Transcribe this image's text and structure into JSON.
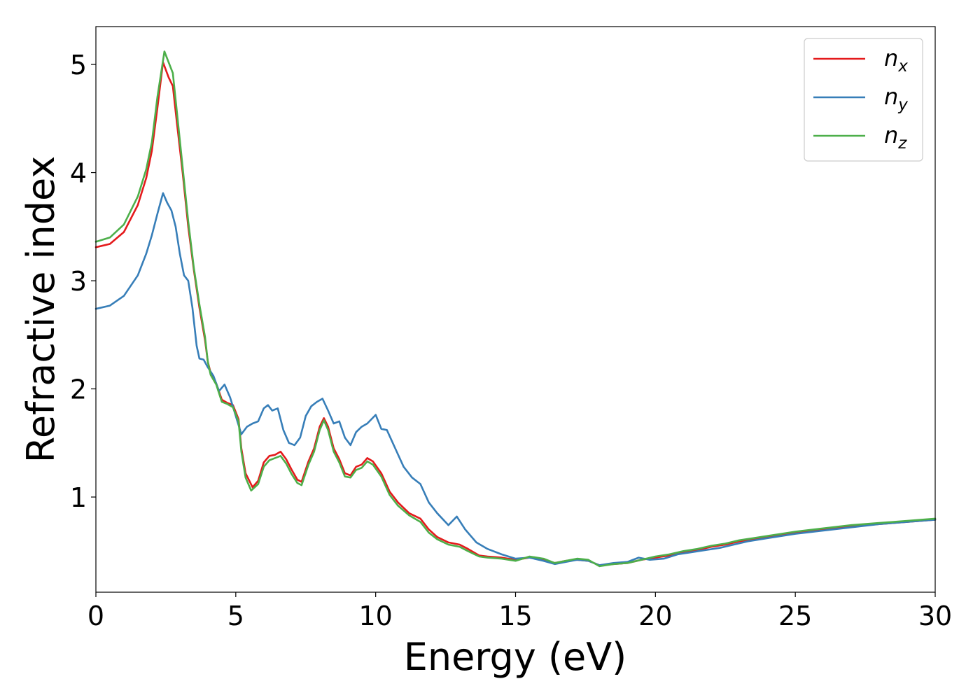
{
  "chart_data": {
    "type": "line",
    "xlabel": "Energy (eV)",
    "ylabel": "Refractive index",
    "xlim": [
      0,
      30
    ],
    "ylim": [
      0.12,
      5.35
    ],
    "x_ticks": [
      0,
      5,
      10,
      15,
      20,
      25,
      30
    ],
    "y_ticks": [
      1,
      2,
      3,
      4,
      5
    ],
    "grid": false,
    "legend_position": "top-right",
    "series": [
      {
        "name": "n",
        "subscript": "x",
        "color": "#e41a1c",
        "points": [
          [
            0,
            3.31
          ],
          [
            0.5,
            3.34
          ],
          [
            1.0,
            3.45
          ],
          [
            1.5,
            3.7
          ],
          [
            1.8,
            3.95
          ],
          [
            2.0,
            4.2
          ],
          [
            2.2,
            4.6
          ],
          [
            2.4,
            5.02
          ],
          [
            2.5,
            4.95
          ],
          [
            2.6,
            4.88
          ],
          [
            2.75,
            4.8
          ],
          [
            2.9,
            4.45
          ],
          [
            3.1,
            4.0
          ],
          [
            3.3,
            3.5
          ],
          [
            3.5,
            3.1
          ],
          [
            3.7,
            2.75
          ],
          [
            3.9,
            2.45
          ],
          [
            4.0,
            2.25
          ],
          [
            4.1,
            2.15
          ],
          [
            4.3,
            2.05
          ],
          [
            4.5,
            1.9
          ],
          [
            4.7,
            1.87
          ],
          [
            4.9,
            1.85
          ],
          [
            5.1,
            1.72
          ],
          [
            5.2,
            1.45
          ],
          [
            5.35,
            1.22
          ],
          [
            5.6,
            1.09
          ],
          [
            5.8,
            1.15
          ],
          [
            6.0,
            1.32
          ],
          [
            6.2,
            1.38
          ],
          [
            6.4,
            1.39
          ],
          [
            6.6,
            1.42
          ],
          [
            6.8,
            1.35
          ],
          [
            7.0,
            1.25
          ],
          [
            7.2,
            1.16
          ],
          [
            7.35,
            1.14
          ],
          [
            7.6,
            1.33
          ],
          [
            7.8,
            1.45
          ],
          [
            8.0,
            1.65
          ],
          [
            8.15,
            1.73
          ],
          [
            8.3,
            1.65
          ],
          [
            8.5,
            1.45
          ],
          [
            8.7,
            1.35
          ],
          [
            8.9,
            1.22
          ],
          [
            9.1,
            1.2
          ],
          [
            9.3,
            1.28
          ],
          [
            9.5,
            1.3
          ],
          [
            9.7,
            1.36
          ],
          [
            9.9,
            1.33
          ],
          [
            10.2,
            1.22
          ],
          [
            10.5,
            1.05
          ],
          [
            10.8,
            0.95
          ],
          [
            11.2,
            0.85
          ],
          [
            11.6,
            0.8
          ],
          [
            11.9,
            0.7
          ],
          [
            12.2,
            0.63
          ],
          [
            12.6,
            0.58
          ],
          [
            13.0,
            0.56
          ],
          [
            13.3,
            0.52
          ],
          [
            13.7,
            0.46
          ],
          [
            14.0,
            0.45
          ],
          [
            14.5,
            0.44
          ],
          [
            15.0,
            0.42
          ],
          [
            15.5,
            0.44
          ],
          [
            16.0,
            0.42
          ],
          [
            16.4,
            0.39
          ],
          [
            16.8,
            0.41
          ],
          [
            17.2,
            0.42
          ],
          [
            17.6,
            0.41
          ],
          [
            18.0,
            0.37
          ],
          [
            18.5,
            0.38
          ],
          [
            19.0,
            0.39
          ],
          [
            19.5,
            0.42
          ],
          [
            20.0,
            0.44
          ],
          [
            20.5,
            0.46
          ],
          [
            21.0,
            0.49
          ],
          [
            21.5,
            0.51
          ],
          [
            22.0,
            0.54
          ],
          [
            22.5,
            0.56
          ],
          [
            23.0,
            0.59
          ],
          [
            23.5,
            0.61
          ],
          [
            24.0,
            0.63
          ],
          [
            25.0,
            0.67
          ],
          [
            26.0,
            0.7
          ],
          [
            27.0,
            0.73
          ],
          [
            28.0,
            0.75
          ],
          [
            29.0,
            0.77
          ],
          [
            30.0,
            0.79
          ]
        ]
      },
      {
        "name": "n",
        "subscript": "y",
        "color": "#377eb8",
        "points": [
          [
            0,
            2.74
          ],
          [
            0.5,
            2.77
          ],
          [
            1.0,
            2.86
          ],
          [
            1.5,
            3.05
          ],
          [
            1.8,
            3.25
          ],
          [
            2.0,
            3.42
          ],
          [
            2.2,
            3.62
          ],
          [
            2.4,
            3.81
          ],
          [
            2.55,
            3.72
          ],
          [
            2.7,
            3.65
          ],
          [
            2.85,
            3.5
          ],
          [
            3.0,
            3.25
          ],
          [
            3.15,
            3.05
          ],
          [
            3.3,
            3.0
          ],
          [
            3.45,
            2.75
          ],
          [
            3.6,
            2.4
          ],
          [
            3.7,
            2.28
          ],
          [
            3.85,
            2.27
          ],
          [
            4.0,
            2.2
          ],
          [
            4.2,
            2.12
          ],
          [
            4.4,
            1.98
          ],
          [
            4.6,
            2.04
          ],
          [
            4.8,
            1.92
          ],
          [
            5.0,
            1.75
          ],
          [
            5.2,
            1.58
          ],
          [
            5.4,
            1.65
          ],
          [
            5.6,
            1.68
          ],
          [
            5.8,
            1.7
          ],
          [
            6.0,
            1.82
          ],
          [
            6.15,
            1.85
          ],
          [
            6.3,
            1.8
          ],
          [
            6.5,
            1.82
          ],
          [
            6.7,
            1.62
          ],
          [
            6.9,
            1.5
          ],
          [
            7.1,
            1.48
          ],
          [
            7.3,
            1.55
          ],
          [
            7.5,
            1.75
          ],
          [
            7.7,
            1.84
          ],
          [
            7.9,
            1.88
          ],
          [
            8.1,
            1.91
          ],
          [
            8.3,
            1.8
          ],
          [
            8.5,
            1.68
          ],
          [
            8.7,
            1.7
          ],
          [
            8.9,
            1.55
          ],
          [
            9.1,
            1.48
          ],
          [
            9.3,
            1.6
          ],
          [
            9.5,
            1.65
          ],
          [
            9.7,
            1.68
          ],
          [
            10.0,
            1.76
          ],
          [
            10.2,
            1.63
          ],
          [
            10.4,
            1.62
          ],
          [
            10.7,
            1.45
          ],
          [
            11.0,
            1.28
          ],
          [
            11.3,
            1.18
          ],
          [
            11.6,
            1.12
          ],
          [
            11.9,
            0.95
          ],
          [
            12.2,
            0.85
          ],
          [
            12.6,
            0.74
          ],
          [
            12.9,
            0.82
          ],
          [
            13.2,
            0.7
          ],
          [
            13.6,
            0.58
          ],
          [
            14.0,
            0.52
          ],
          [
            14.5,
            0.47
          ],
          [
            15.0,
            0.43
          ],
          [
            15.5,
            0.44
          ],
          [
            16.0,
            0.41
          ],
          [
            16.4,
            0.38
          ],
          [
            16.8,
            0.4
          ],
          [
            17.2,
            0.42
          ],
          [
            17.6,
            0.41
          ],
          [
            18.0,
            0.37
          ],
          [
            18.5,
            0.39
          ],
          [
            19.0,
            0.4
          ],
          [
            19.4,
            0.44
          ],
          [
            19.8,
            0.42
          ],
          [
            20.3,
            0.43
          ],
          [
            20.8,
            0.47
          ],
          [
            21.3,
            0.49
          ],
          [
            21.8,
            0.51
          ],
          [
            22.3,
            0.53
          ],
          [
            22.8,
            0.56
          ],
          [
            23.3,
            0.59
          ],
          [
            24.0,
            0.62
          ],
          [
            25.0,
            0.66
          ],
          [
            26.0,
            0.69
          ],
          [
            27.0,
            0.72
          ],
          [
            28.0,
            0.75
          ],
          [
            29.0,
            0.77
          ],
          [
            30.0,
            0.79
          ]
        ]
      },
      {
        "name": "n",
        "subscript": "z",
        "color": "#4daf4a",
        "points": [
          [
            0,
            3.36
          ],
          [
            0.5,
            3.4
          ],
          [
            1.0,
            3.52
          ],
          [
            1.5,
            3.78
          ],
          [
            1.8,
            4.03
          ],
          [
            2.0,
            4.28
          ],
          [
            2.2,
            4.7
          ],
          [
            2.45,
            5.12
          ],
          [
            2.6,
            5.02
          ],
          [
            2.75,
            4.92
          ],
          [
            2.9,
            4.55
          ],
          [
            3.1,
            4.05
          ],
          [
            3.3,
            3.55
          ],
          [
            3.5,
            3.12
          ],
          [
            3.7,
            2.78
          ],
          [
            3.9,
            2.48
          ],
          [
            4.0,
            2.25
          ],
          [
            4.1,
            2.13
          ],
          [
            4.3,
            2.04
          ],
          [
            4.5,
            1.88
          ],
          [
            4.7,
            1.86
          ],
          [
            4.9,
            1.83
          ],
          [
            5.1,
            1.7
          ],
          [
            5.2,
            1.42
          ],
          [
            5.35,
            1.18
          ],
          [
            5.55,
            1.06
          ],
          [
            5.8,
            1.12
          ],
          [
            6.0,
            1.28
          ],
          [
            6.2,
            1.34
          ],
          [
            6.4,
            1.36
          ],
          [
            6.6,
            1.38
          ],
          [
            6.8,
            1.31
          ],
          [
            7.0,
            1.21
          ],
          [
            7.2,
            1.13
          ],
          [
            7.35,
            1.11
          ],
          [
            7.6,
            1.3
          ],
          [
            7.8,
            1.42
          ],
          [
            8.0,
            1.62
          ],
          [
            8.15,
            1.71
          ],
          [
            8.3,
            1.62
          ],
          [
            8.5,
            1.42
          ],
          [
            8.7,
            1.32
          ],
          [
            8.9,
            1.19
          ],
          [
            9.1,
            1.18
          ],
          [
            9.3,
            1.25
          ],
          [
            9.5,
            1.27
          ],
          [
            9.7,
            1.33
          ],
          [
            9.9,
            1.3
          ],
          [
            10.2,
            1.19
          ],
          [
            10.5,
            1.02
          ],
          [
            10.8,
            0.92
          ],
          [
            11.2,
            0.83
          ],
          [
            11.6,
            0.77
          ],
          [
            11.9,
            0.67
          ],
          [
            12.2,
            0.61
          ],
          [
            12.6,
            0.56
          ],
          [
            13.0,
            0.54
          ],
          [
            13.3,
            0.5
          ],
          [
            13.7,
            0.45
          ],
          [
            14.0,
            0.44
          ],
          [
            14.5,
            0.43
          ],
          [
            15.0,
            0.41
          ],
          [
            15.5,
            0.45
          ],
          [
            16.0,
            0.43
          ],
          [
            16.4,
            0.39
          ],
          [
            16.8,
            0.41
          ],
          [
            17.2,
            0.43
          ],
          [
            17.6,
            0.42
          ],
          [
            18.0,
            0.36
          ],
          [
            18.5,
            0.38
          ],
          [
            19.0,
            0.39
          ],
          [
            19.5,
            0.42
          ],
          [
            20.0,
            0.45
          ],
          [
            20.5,
            0.47
          ],
          [
            21.0,
            0.5
          ],
          [
            21.5,
            0.52
          ],
          [
            22.0,
            0.55
          ],
          [
            22.5,
            0.57
          ],
          [
            23.0,
            0.6
          ],
          [
            23.5,
            0.62
          ],
          [
            24.0,
            0.64
          ],
          [
            25.0,
            0.68
          ],
          [
            26.0,
            0.71
          ],
          [
            27.0,
            0.74
          ],
          [
            28.0,
            0.76
          ],
          [
            29.0,
            0.78
          ],
          [
            30.0,
            0.8
          ]
        ]
      }
    ]
  }
}
